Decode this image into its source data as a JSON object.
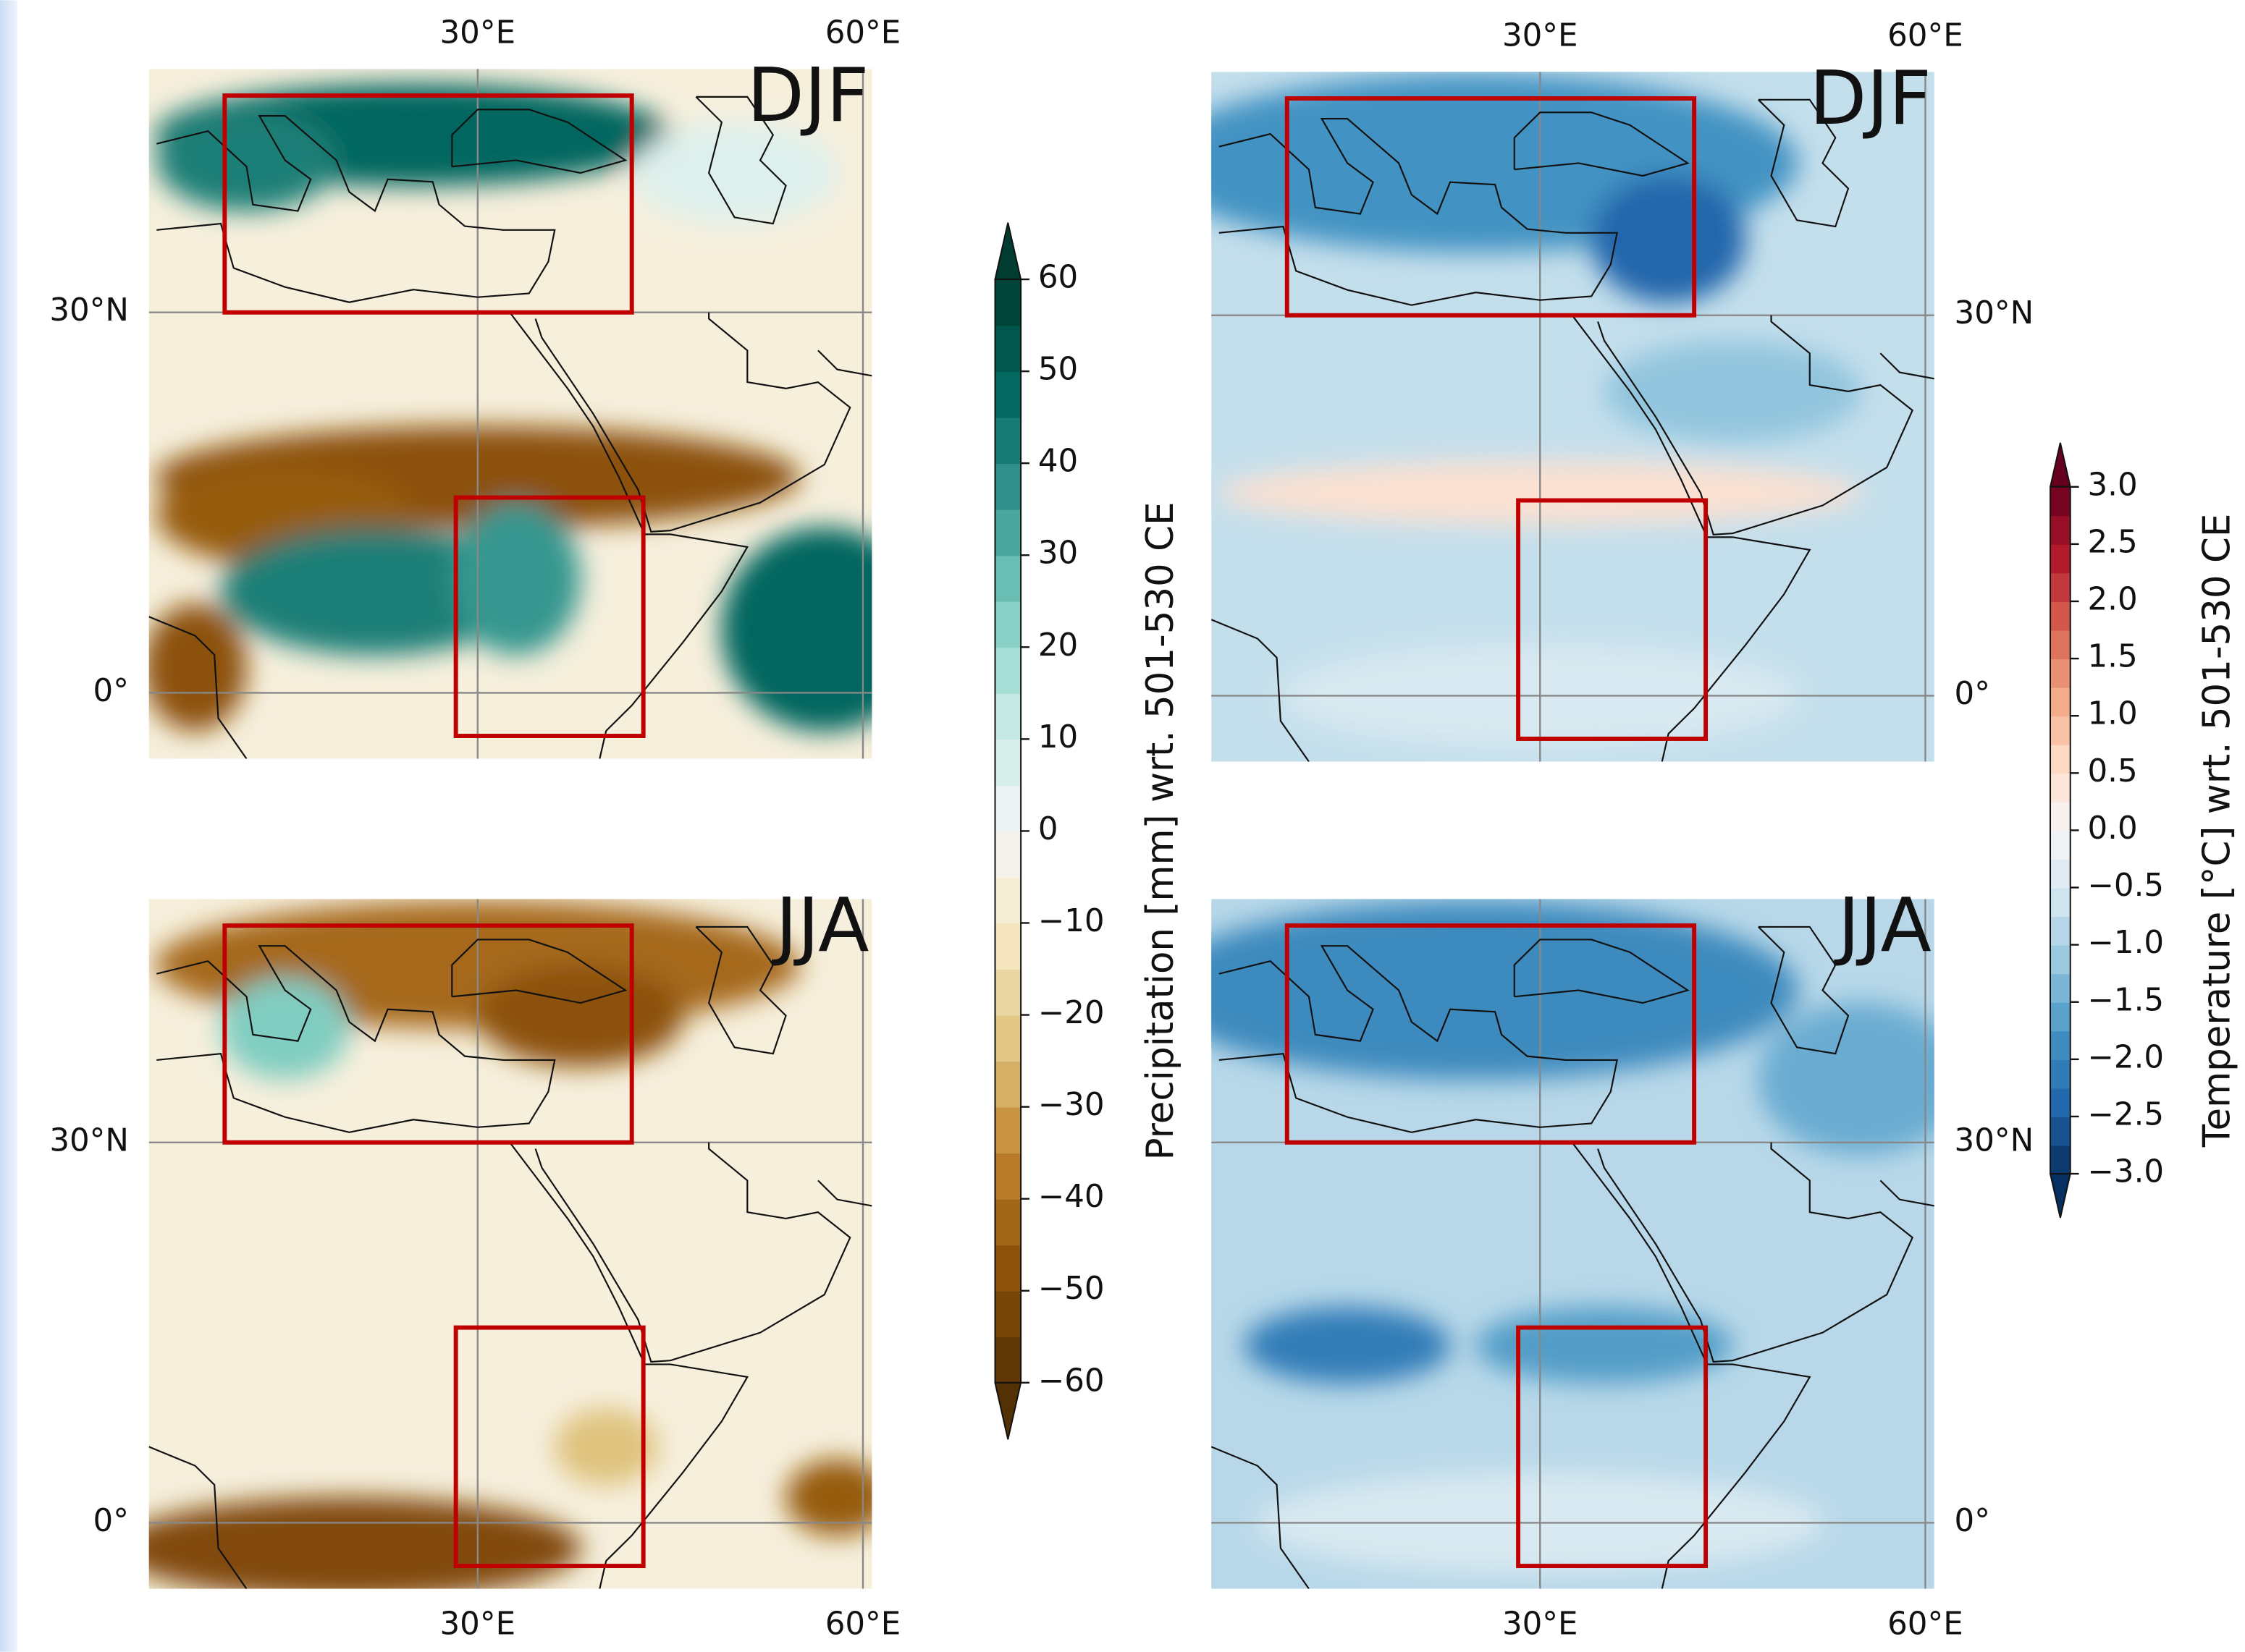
{
  "map_axes": {
    "lonlim": [
      4.4,
      60.7
    ],
    "latlim": [
      -5.2,
      49.2
    ],
    "lon_ticks": [
      {
        "value": 30,
        "label": "30°E"
      },
      {
        "value": 60,
        "label": "60°E"
      }
    ],
    "lat_ticks": [
      {
        "value": 30,
        "label": "30°N"
      },
      {
        "value": 0,
        "label": "0°"
      }
    ]
  },
  "panels": [
    {
      "label": "DJF"
    },
    {
      "label": "JJA"
    },
    {
      "label": "DJF"
    },
    {
      "label": "JJA"
    }
  ],
  "colorbars": [
    {
      "label": "Precipitation [mm] wrt. 501-530 CE",
      "lim": [
        -60,
        60
      ],
      "ticks": [
        60,
        50,
        40,
        30,
        20,
        10,
        0,
        {
          "value": -10,
          "label": "−10"
        },
        {
          "value": -20,
          "label": "−20"
        },
        {
          "value": -30,
          "label": "−30"
        },
        {
          "value": -40,
          "label": "−40"
        },
        {
          "value": -50,
          "label": "−50"
        },
        {
          "value": -60,
          "label": "−60"
        }
      ]
    },
    {
      "label": "Temperature [°C] wrt. 501-530 CE",
      "lim": [
        -3,
        3
      ],
      "ticks": [
        {
          "value": 3,
          "label": "3.0"
        },
        {
          "value": 2.5,
          "label": "2.5"
        },
        {
          "value": 2,
          "label": "2.0"
        },
        {
          "value": 1.5,
          "label": "1.5"
        },
        {
          "value": 1,
          "label": "1.0"
        },
        {
          "value": 0.5,
          "label": "0.5"
        },
        {
          "value": 0,
          "label": "0.0"
        },
        {
          "value": -0.5,
          "label": "−0.5"
        },
        {
          "value": -1,
          "label": "−1.0"
        },
        {
          "value": -1.5,
          "label": "−1.5"
        },
        {
          "value": -2,
          "label": "−2.0"
        },
        {
          "value": -2.5,
          "label": "−2.5"
        },
        {
          "value": -3,
          "label": "−3.0"
        }
      ]
    }
  ]
}
